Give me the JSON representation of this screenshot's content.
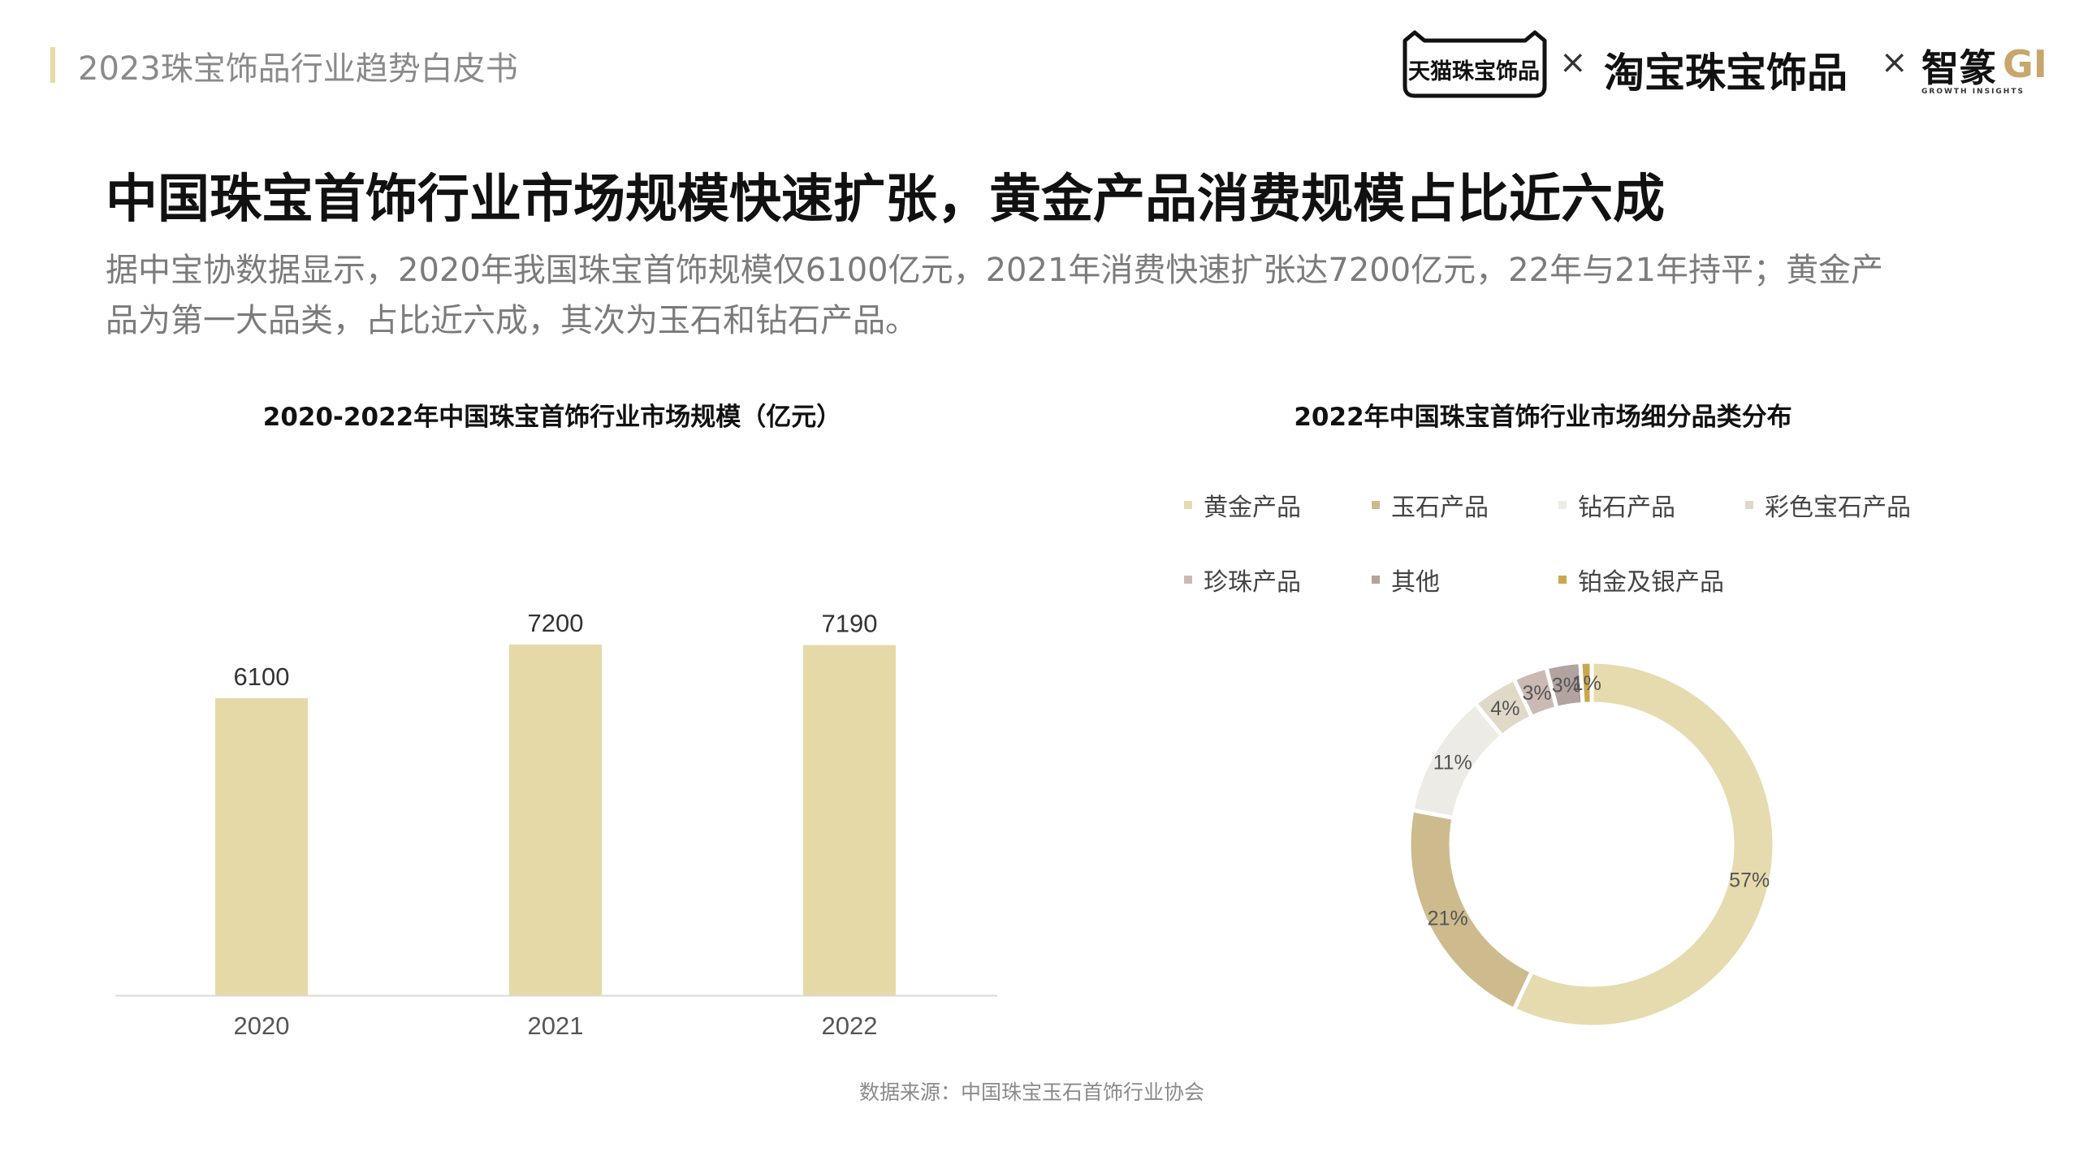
{
  "header": {
    "title": "2023珠宝饰品行业趋势白皮书"
  },
  "logos": {
    "tmall": "天猫珠宝饰品",
    "taobao": "淘宝珠宝饰品",
    "zhi": "智篆",
    "gi": "GI",
    "growth": "GROWTH INSIGHTS",
    "separator": "×"
  },
  "main": {
    "title": "中国珠宝首饰行业市场规模快速扩张，黄金产品消费规模占比近六成",
    "desc_line1": "据中宝协数据显示，2020年我国珠宝首饰规模仅6100亿元，2021年消费快速扩张达7200亿元，22年与21年持平；黄金产",
    "desc_line2": "品为第一大品类，占比近六成，其次为玉石和钻石产品。"
  },
  "source": "数据来源：中国珠宝玉石首饰行业协会",
  "colors": {
    "bar": "#e5d9a8",
    "accent": "#e8d9a7"
  },
  "chart_data": [
    {
      "type": "bar",
      "title": "2020-2022年中国珠宝首饰行业市场规模（亿元）",
      "categories": [
        "2020",
        "2021",
        "2022"
      ],
      "values": [
        6100,
        7200,
        7190
      ],
      "value_labels": [
        "6100",
        "7200",
        "7190"
      ],
      "ylim": [
        0,
        7200
      ],
      "grid": false
    },
    {
      "type": "pie",
      "donut": true,
      "title": "2022年中国珠宝首饰行业市场细分品类分布",
      "legend_position": "top",
      "slices": [
        {
          "name": "黄金产品",
          "value": 57,
          "label": "57%",
          "color": "#e5dbae"
        },
        {
          "name": "玉石产品",
          "value": 21,
          "label": "21%",
          "color": "#cdbb8e"
        },
        {
          "name": "钻石产品",
          "value": 11,
          "label": "11%",
          "color": "#ecebe6"
        },
        {
          "name": "彩色宝石产品",
          "value": 4,
          "label": "4%",
          "color": "#e0d9c8"
        },
        {
          "name": "珍珠产品",
          "value": 3,
          "label": "3%",
          "color": "#cbbab4"
        },
        {
          "name": "其他",
          "value": 3,
          "label": "3%",
          "color": "#b2a3a0"
        },
        {
          "name": "铂金及银产品",
          "value": 1,
          "label": "1%",
          "color": "#c9a84d"
        }
      ]
    }
  ]
}
